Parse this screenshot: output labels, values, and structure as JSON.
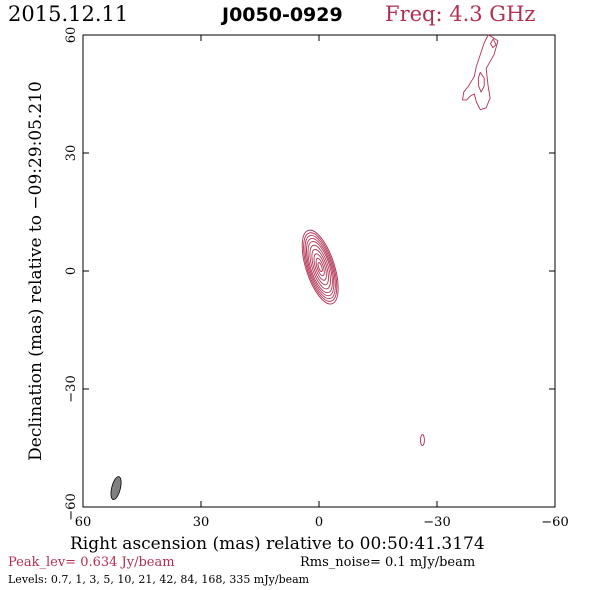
{
  "header": {
    "date": "2015.12.11",
    "source": "J0050-0929",
    "freq": "Freq: 4.3 GHz"
  },
  "footer": {
    "peak": "Peak_lev=  0.634 Jy/beam",
    "rms": "Rms_noise=  0.1 mJy/beam",
    "levels": "Levels: 0.7,   1,   3,   5,  10,  21,  42,  84, 168, 335 mJy/beam"
  },
  "colors": {
    "contour": "#b03050",
    "beam_fill": "#808080",
    "axis": "#000000"
  },
  "chart_data": {
    "type": "contour",
    "xlabel": "Right ascension (mas) relative to 00:50:41.3174",
    "ylabel": "Declination (mas) relative to −09:29:05.210",
    "xlim": [
      60,
      -60
    ],
    "ylim": [
      -60,
      60
    ],
    "x_ticks": [
      {
        "value": 60,
        "label": "60"
      },
      {
        "value": 30,
        "label": "30"
      },
      {
        "value": 0,
        "label": "0"
      },
      {
        "value": -30,
        "label": "−30"
      },
      {
        "value": -60,
        "label": "−60"
      }
    ],
    "y_ticks": [
      {
        "value": -60,
        "label": "−60"
      },
      {
        "value": -30,
        "label": "−30"
      },
      {
        "value": 0,
        "label": "0"
      },
      {
        "value": 30,
        "label": "30"
      },
      {
        "value": 60,
        "label": "60"
      }
    ],
    "core_center": [
      -0.3,
      1.0
    ],
    "core_contours": [
      {
        "rx": 3.6,
        "ry": 9.8
      },
      {
        "rx": 3.3,
        "ry": 9.1
      },
      {
        "rx": 3.0,
        "ry": 8.4
      },
      {
        "rx": 2.7,
        "ry": 7.6
      },
      {
        "rx": 2.4,
        "ry": 6.8
      },
      {
        "rx": 2.0,
        "ry": 5.8
      },
      {
        "rx": 1.6,
        "ry": 4.7
      },
      {
        "rx": 1.2,
        "ry": 3.5
      },
      {
        "rx": 0.8,
        "ry": 2.3
      },
      {
        "rx": 0.4,
        "ry": 1.2
      }
    ],
    "core_angle_deg": -18,
    "jet_outer_contour": [
      [
        -44.0,
        59.5
      ],
      [
        -45.5,
        58.5
      ],
      [
        -44.5,
        55.0
      ],
      [
        -42.5,
        51.5
      ],
      [
        -43.0,
        47.0
      ],
      [
        -43.5,
        44.0
      ],
      [
        -42.5,
        41.5
      ],
      [
        -41.0,
        41.0
      ],
      [
        -40.0,
        43.0
      ],
      [
        -39.5,
        45.0
      ],
      [
        -38.5,
        44.5
      ],
      [
        -37.5,
        43.5
      ],
      [
        -36.5,
        43.5
      ],
      [
        -36.8,
        45.5
      ],
      [
        -38.0,
        47.0
      ],
      [
        -39.5,
        49.5
      ],
      [
        -40.0,
        52.0
      ],
      [
        -41.0,
        55.0
      ],
      [
        -42.0,
        58.0
      ],
      [
        -43.0,
        60.0
      ],
      [
        -44.0,
        59.5
      ]
    ],
    "jet_inner_contours": [
      [
        [
          -41.0,
          50.5
        ],
        [
          -42.0,
          49.0
        ],
        [
          -42.0,
          47.0
        ],
        [
          -41.2,
          45.5
        ],
        [
          -40.6,
          47.0
        ],
        [
          -40.5,
          49.0
        ],
        [
          -41.0,
          50.5
        ]
      ],
      [
        [
          -44.3,
          59.0
        ],
        [
          -45.0,
          57.5
        ],
        [
          -44.2,
          56.8
        ],
        [
          -43.6,
          57.8
        ],
        [
          -44.3,
          59.0
        ]
      ]
    ],
    "faint_component": {
      "x": -26.3,
      "y": -43.0,
      "rx": 0.5,
      "ry": 1.4
    },
    "beam": {
      "x": 51.6,
      "y": -55.2,
      "major": 3.0,
      "minor": 1.1,
      "pa_deg": 14
    }
  }
}
